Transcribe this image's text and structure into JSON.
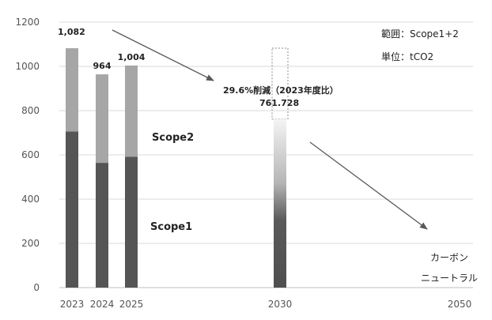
{
  "chart_data": {
    "type": "bar",
    "stacked": true,
    "categories": [
      "2023",
      "2024",
      "2025",
      "2030",
      "2050"
    ],
    "series": [
      {
        "name": "Scope1",
        "values": [
          706,
          564,
          592,
          430,
          0
        ]
      },
      {
        "name": "Scope2",
        "values": [
          376,
          400,
          412,
          332,
          0
        ]
      }
    ],
    "totals": [
      1082,
      964,
      1004,
      761.728,
      0
    ],
    "total_labels": [
      "1,082",
      "964",
      "1,004",
      "",
      ""
    ],
    "ylim": [
      0,
      1200
    ],
    "yticks": [
      0,
      200,
      400,
      600,
      800,
      1000,
      1200
    ],
    "grid": true,
    "colors": {
      "Scope1": "#555555",
      "Scope2": "#a6a6a6",
      "gridline": "#d9d9d9",
      "arrow": "#595959"
    },
    "target_outline": {
      "category": "2030",
      "from": 761.728,
      "to": 1082
    },
    "annotations": {
      "reduction": "29.6%削減（2023年度比）",
      "value_2030": "761.728",
      "range_note": "範囲：Scope1+2",
      "unit_note": "単位：tCO2",
      "carbon_line1": "カーボン",
      "carbon_line2": "ニュートラル"
    }
  }
}
